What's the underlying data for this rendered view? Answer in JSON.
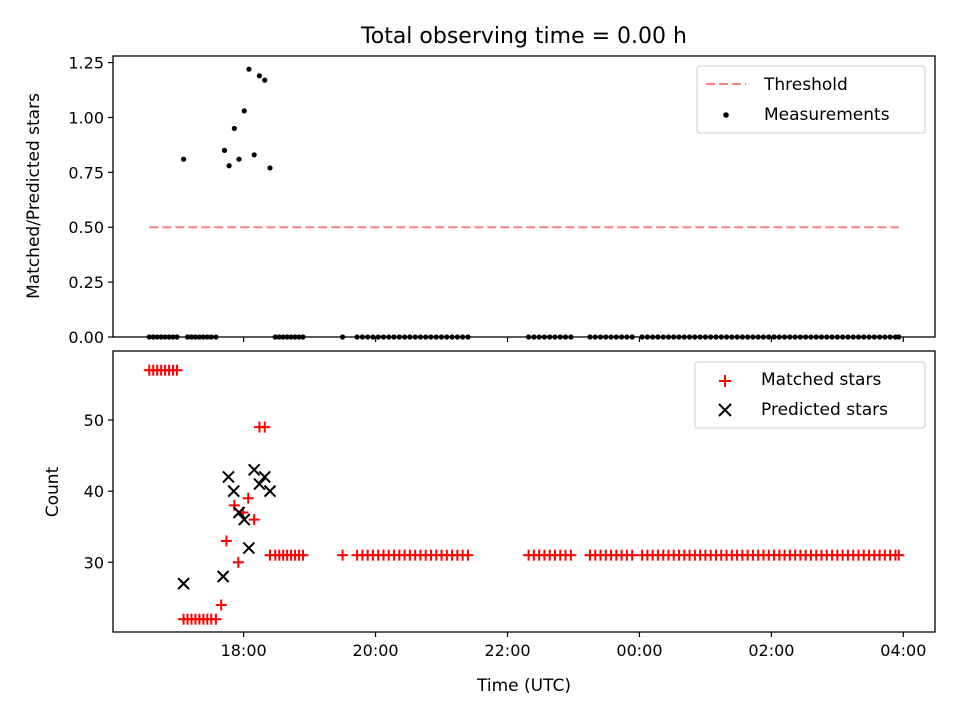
{
  "figure": {
    "title": "Total observing time = 0.00 h",
    "xlabel": "Time (UTC)",
    "x_tick_labels": [
      "18:00",
      "20:00",
      "22:00",
      "00:00",
      "02:00",
      "04:00"
    ],
    "x_tick_hours": [
      18,
      20,
      22,
      24,
      26,
      28
    ],
    "x_range_hours": [
      16.02,
      28.48
    ]
  },
  "chart_data": [
    {
      "type": "scatter",
      "ylabel": "Matched/Predicted stars",
      "ylim": [
        0,
        1.28
      ],
      "yticks": [
        0.0,
        0.25,
        0.5,
        0.75,
        1.0,
        1.25
      ],
      "ytick_labels": [
        "0.00",
        "0.25",
        "0.50",
        "0.75",
        "1.00",
        "1.25"
      ],
      "legend_position": "top-right",
      "threshold": {
        "name": "Threshold",
        "y": 0.5,
        "x_range": [
          16.57,
          27.93
        ],
        "color": "#ff7f7f",
        "style": "dashed"
      },
      "series": [
        {
          "name": "Measurements",
          "color": "#000000",
          "points": [
            [
              17.09,
              0.81
            ],
            [
              17.71,
              0.85
            ],
            [
              17.78,
              0.78
            ],
            [
              17.86,
              0.95
            ],
            [
              17.93,
              0.81
            ],
            [
              18.01,
              1.03
            ],
            [
              18.08,
              1.22
            ],
            [
              18.16,
              0.83
            ],
            [
              18.24,
              1.19
            ],
            [
              18.32,
              1.17
            ],
            [
              18.4,
              0.77
            ]
          ],
          "zero_points_x": [
            16.57,
            16.63,
            16.69,
            16.75,
            16.81,
            16.87,
            16.93,
            16.99,
            17.15,
            17.21,
            17.27,
            17.33,
            17.39,
            17.45,
            17.51,
            17.58,
            18.48,
            18.54,
            18.6,
            18.66,
            18.72,
            18.78,
            18.84,
            18.9,
            19.5,
            19.72,
            19.8,
            19.88,
            19.96,
            20.04,
            20.12,
            20.2,
            20.28,
            20.36,
            20.44,
            20.52,
            20.6,
            20.68,
            20.76,
            20.84,
            20.92,
            21.0,
            21.08,
            21.16,
            21.24,
            21.32,
            21.4,
            22.32,
            22.4,
            22.48,
            22.56,
            22.64,
            22.72,
            22.8,
            22.88,
            22.96,
            23.25,
            23.33,
            23.41,
            23.49,
            23.57,
            23.65,
            23.73,
            23.81,
            23.89,
            24.04,
            24.12,
            24.2,
            24.28,
            24.36,
            24.44,
            24.52,
            24.6,
            24.68,
            24.76,
            24.84,
            24.92,
            25.0,
            25.08,
            25.16,
            25.24,
            25.32,
            25.4,
            25.48,
            25.56,
            25.64,
            25.72,
            25.8,
            25.88,
            25.96,
            26.04,
            26.12,
            26.2,
            26.28,
            26.36,
            26.44,
            26.52,
            26.6,
            26.68,
            26.76,
            26.84,
            26.92,
            27.0,
            27.08,
            27.16,
            27.24,
            27.32,
            27.4,
            27.48,
            27.56,
            27.64,
            27.72,
            27.8,
            27.88,
            27.93
          ]
        }
      ]
    },
    {
      "type": "scatter",
      "ylabel": "Count",
      "ylim": [
        20.2,
        59.7
      ],
      "yticks": [
        30,
        40,
        50
      ],
      "ytick_labels": [
        "30",
        "40",
        "50"
      ],
      "legend_position": "top-right",
      "series": [
        {
          "name": "Matched stars",
          "marker": "plus",
          "color": "#ff0000",
          "points": [
            [
              16.57,
              57
            ],
            [
              16.63,
              57
            ],
            [
              16.69,
              57
            ],
            [
              16.75,
              57
            ],
            [
              16.81,
              57
            ],
            [
              16.87,
              57
            ],
            [
              16.93,
              57
            ],
            [
              16.99,
              57
            ],
            [
              17.09,
              22
            ],
            [
              17.15,
              22
            ],
            [
              17.21,
              22
            ],
            [
              17.27,
              22
            ],
            [
              17.33,
              22
            ],
            [
              17.39,
              22
            ],
            [
              17.45,
              22
            ],
            [
              17.51,
              22
            ],
            [
              17.58,
              22
            ],
            [
              17.66,
              24
            ],
            [
              17.74,
              33
            ],
            [
              17.86,
              38
            ],
            [
              17.92,
              30
            ],
            [
              17.99,
              37
            ],
            [
              18.07,
              39
            ],
            [
              18.16,
              36
            ],
            [
              18.24,
              49
            ],
            [
              18.32,
              49
            ],
            [
              18.4,
              31
            ],
            [
              18.48,
              31
            ],
            [
              18.54,
              31
            ],
            [
              18.6,
              31
            ],
            [
              18.66,
              31
            ],
            [
              18.72,
              31
            ],
            [
              18.78,
              31
            ],
            [
              18.84,
              31
            ],
            [
              18.9,
              31
            ],
            [
              19.5,
              31
            ],
            [
              19.72,
              31
            ],
            [
              19.8,
              31
            ],
            [
              19.88,
              31
            ],
            [
              19.96,
              31
            ],
            [
              20.04,
              31
            ],
            [
              20.12,
              31
            ],
            [
              20.2,
              31
            ],
            [
              20.28,
              31
            ],
            [
              20.36,
              31
            ],
            [
              20.44,
              31
            ],
            [
              20.52,
              31
            ],
            [
              20.6,
              31
            ],
            [
              20.68,
              31
            ],
            [
              20.76,
              31
            ],
            [
              20.84,
              31
            ],
            [
              20.92,
              31
            ],
            [
              21.0,
              31
            ],
            [
              21.08,
              31
            ],
            [
              21.16,
              31
            ],
            [
              21.24,
              31
            ],
            [
              21.32,
              31
            ],
            [
              21.4,
              31
            ],
            [
              22.32,
              31
            ],
            [
              22.4,
              31
            ],
            [
              22.48,
              31
            ],
            [
              22.56,
              31
            ],
            [
              22.64,
              31
            ],
            [
              22.72,
              31
            ],
            [
              22.8,
              31
            ],
            [
              22.88,
              31
            ],
            [
              22.96,
              31
            ],
            [
              23.25,
              31
            ],
            [
              23.33,
              31
            ],
            [
              23.41,
              31
            ],
            [
              23.49,
              31
            ],
            [
              23.57,
              31
            ],
            [
              23.65,
              31
            ],
            [
              23.73,
              31
            ],
            [
              23.81,
              31
            ],
            [
              23.89,
              31
            ],
            [
              24.04,
              31
            ],
            [
              24.12,
              31
            ],
            [
              24.2,
              31
            ],
            [
              24.28,
              31
            ],
            [
              24.36,
              31
            ],
            [
              24.44,
              31
            ],
            [
              24.52,
              31
            ],
            [
              24.6,
              31
            ],
            [
              24.68,
              31
            ],
            [
              24.76,
              31
            ],
            [
              24.84,
              31
            ],
            [
              24.92,
              31
            ],
            [
              25.0,
              31
            ],
            [
              25.08,
              31
            ],
            [
              25.16,
              31
            ],
            [
              25.24,
              31
            ],
            [
              25.32,
              31
            ],
            [
              25.4,
              31
            ],
            [
              25.48,
              31
            ],
            [
              25.56,
              31
            ],
            [
              25.64,
              31
            ],
            [
              25.72,
              31
            ],
            [
              25.8,
              31
            ],
            [
              25.88,
              31
            ],
            [
              25.96,
              31
            ],
            [
              26.04,
              31
            ],
            [
              26.12,
              31
            ],
            [
              26.2,
              31
            ],
            [
              26.28,
              31
            ],
            [
              26.36,
              31
            ],
            [
              26.44,
              31
            ],
            [
              26.52,
              31
            ],
            [
              26.6,
              31
            ],
            [
              26.68,
              31
            ],
            [
              26.76,
              31
            ],
            [
              26.84,
              31
            ],
            [
              26.92,
              31
            ],
            [
              27.0,
              31
            ],
            [
              27.08,
              31
            ],
            [
              27.16,
              31
            ],
            [
              27.24,
              31
            ],
            [
              27.32,
              31
            ],
            [
              27.4,
              31
            ],
            [
              27.48,
              31
            ],
            [
              27.56,
              31
            ],
            [
              27.64,
              31
            ],
            [
              27.72,
              31
            ],
            [
              27.8,
              31
            ],
            [
              27.88,
              31
            ],
            [
              27.93,
              31
            ]
          ]
        },
        {
          "name": "Predicted stars",
          "marker": "x",
          "color": "#000000",
          "points": [
            [
              17.09,
              27
            ],
            [
              17.69,
              28
            ],
            [
              17.77,
              42
            ],
            [
              17.85,
              40
            ],
            [
              17.93,
              37
            ],
            [
              18.01,
              36
            ],
            [
              18.08,
              32
            ],
            [
              18.16,
              43
            ],
            [
              18.24,
              41
            ],
            [
              18.32,
              42
            ],
            [
              18.4,
              40
            ]
          ]
        }
      ]
    }
  ]
}
